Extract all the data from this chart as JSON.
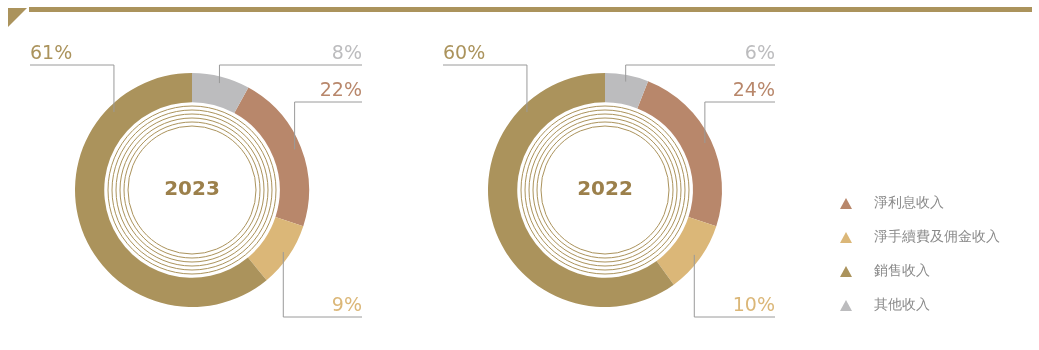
{
  "chart_data": [
    {
      "type": "donut",
      "title": "2023",
      "categories": [
        "淨利息收入",
        "淨手續費及佣金收入",
        "銷售收入",
        "其他收入"
      ],
      "values": [
        22,
        9,
        61,
        8
      ],
      "value_labels": [
        "22%",
        "9%",
        "61%",
        "8%"
      ],
      "colors": [
        "#b8876b",
        "#dbb778",
        "#ab935c",
        "#bcbcbe"
      ],
      "legend": "right"
    },
    {
      "type": "donut",
      "title": "2022",
      "categories": [
        null,
        null,
        null,
        null
      ],
      "values": [
        24,
        10,
        60,
        6
      ],
      "value_labels": [
        "24%",
        "10%",
        "60%",
        "6%"
      ],
      "colors": [
        "#b8876b",
        "#dbb778",
        "#ab935c",
        "#bcbcbe"
      ]
    }
  ]
}
